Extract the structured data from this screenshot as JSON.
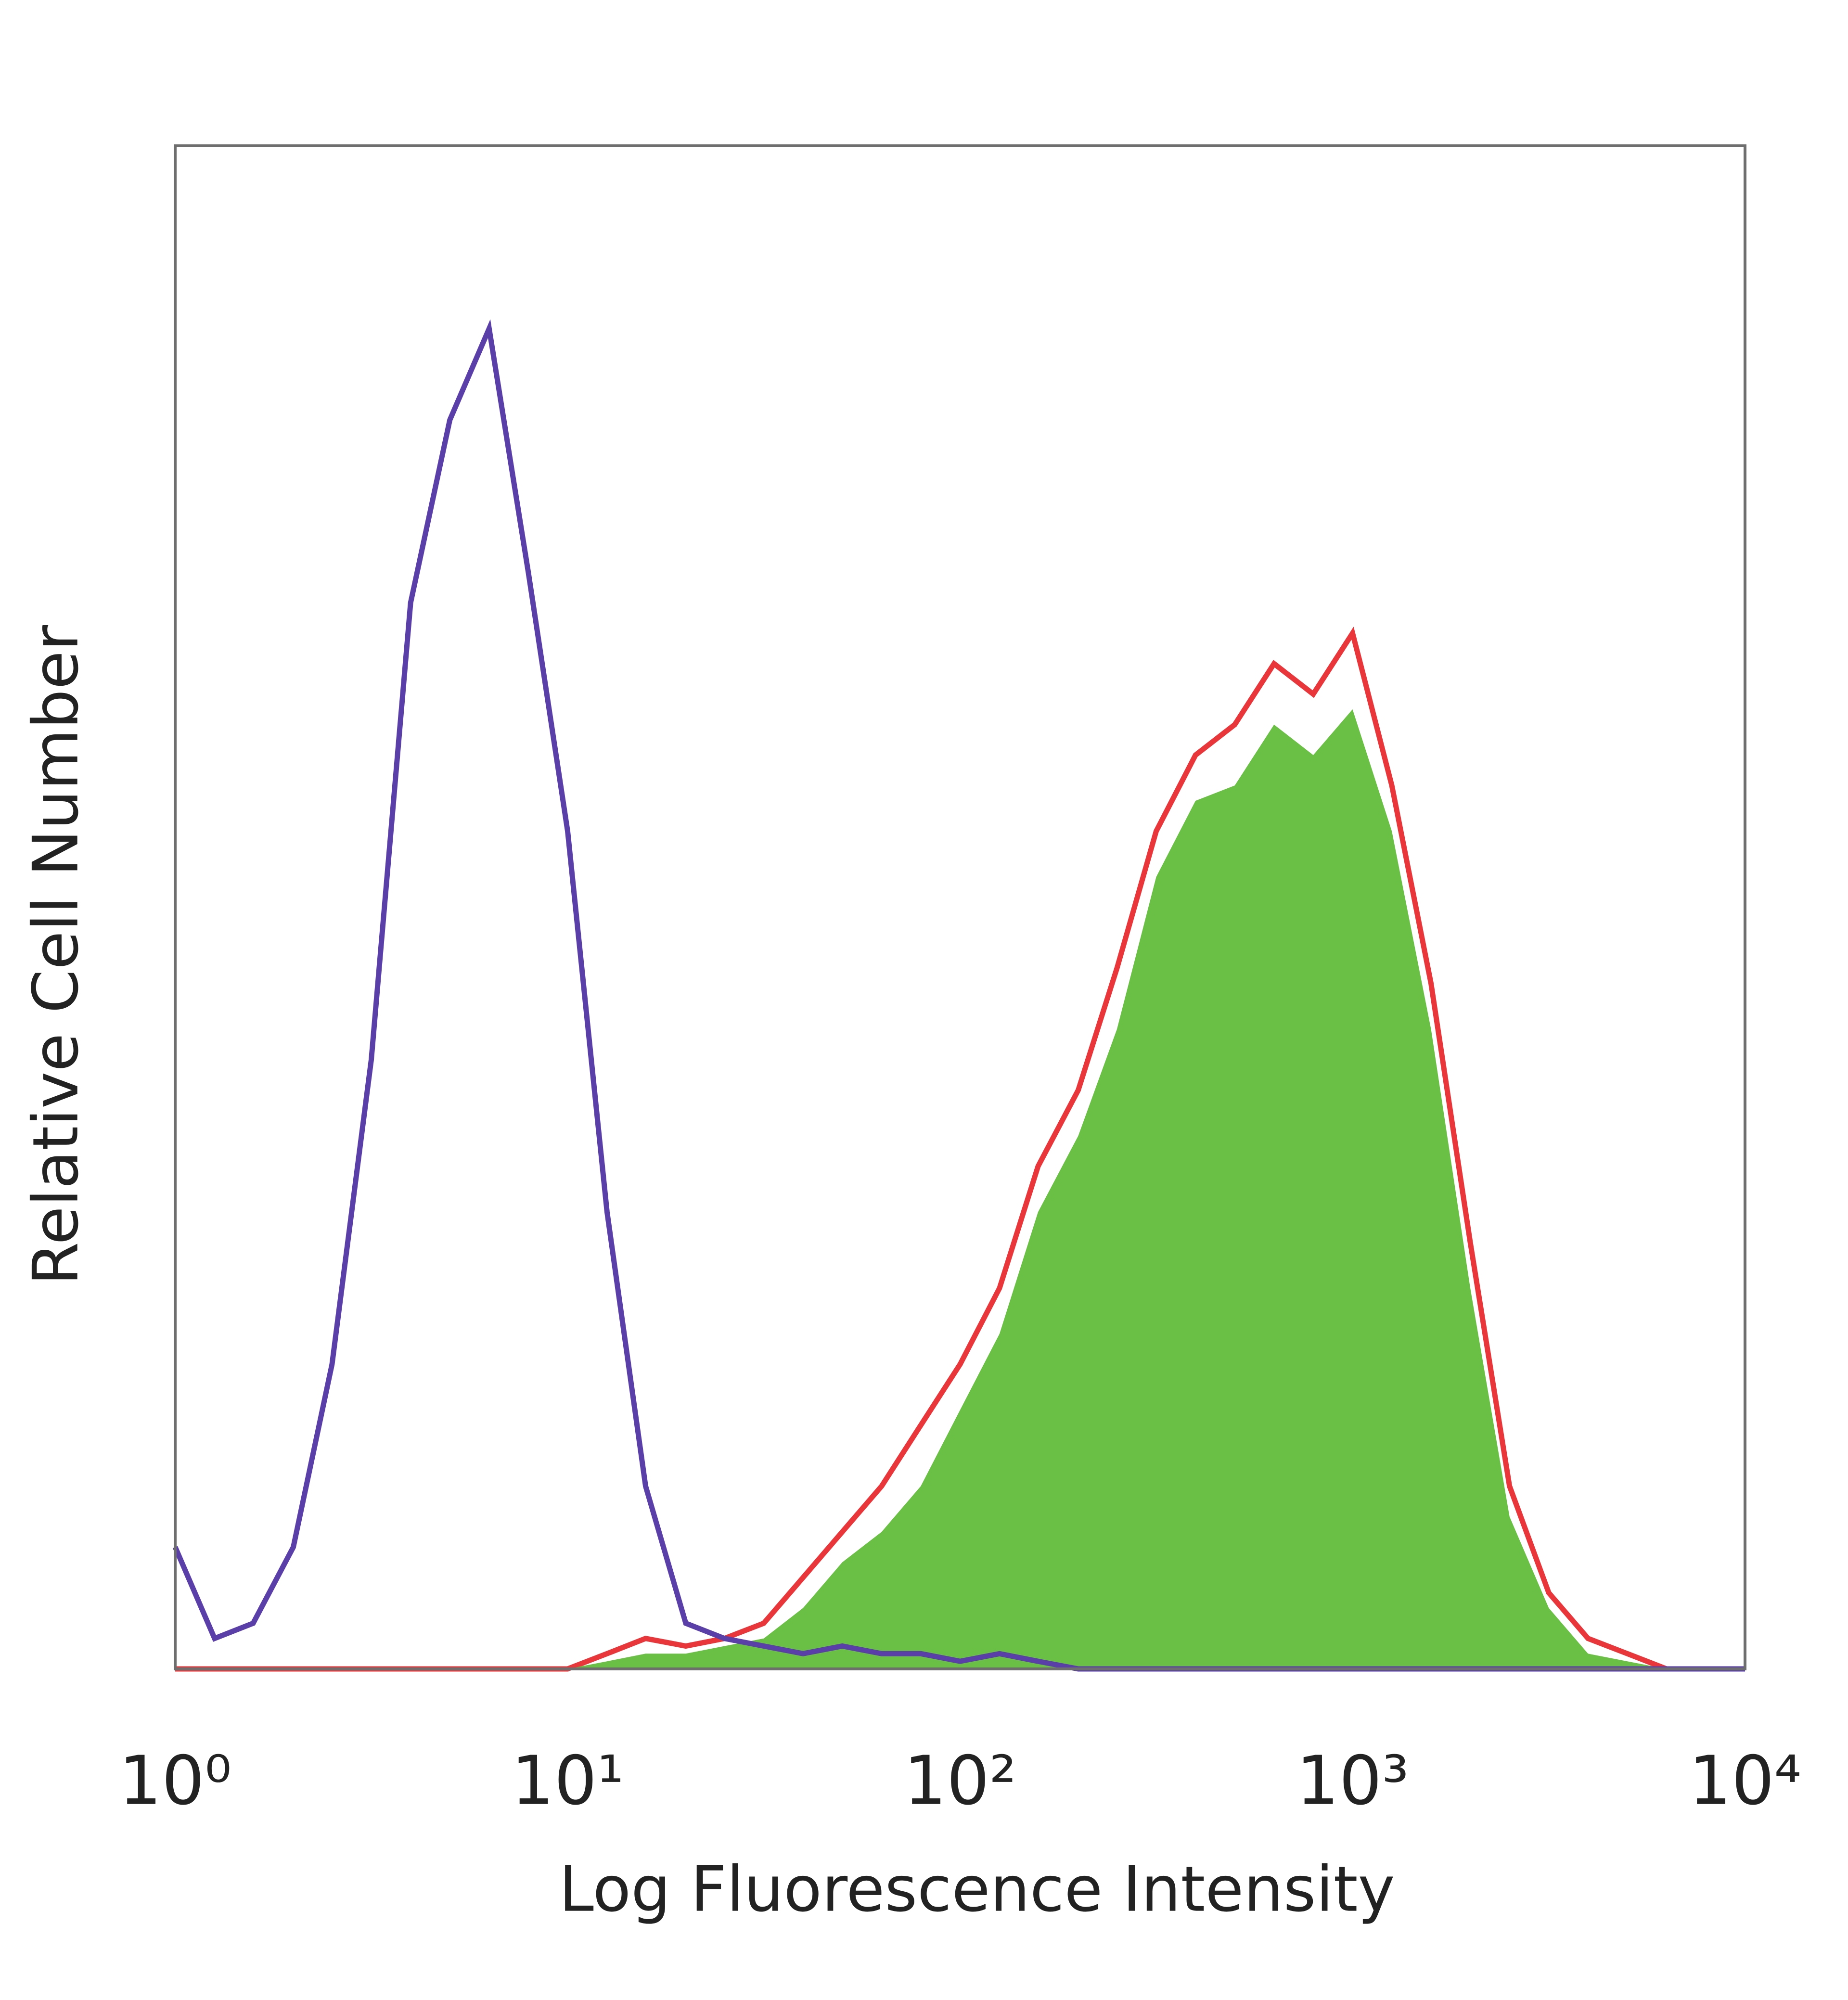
{
  "chart_data": {
    "type": "histogram-line",
    "xlabel": "Log Fluorescence Intensity",
    "ylabel": "Relative Cell Number",
    "xscale": "log",
    "xlim": [
      1,
      10000
    ],
    "xticks": [
      {
        "value": 1,
        "label": "10⁰"
      },
      {
        "value": 10,
        "label": "10¹"
      },
      {
        "value": 100,
        "label": "10²"
      },
      {
        "value": 1000,
        "label": "10³"
      },
      {
        "value": 10000,
        "label": "10⁴"
      }
    ],
    "ylim": [
      0,
      100
    ],
    "grid": false,
    "x": [
      1,
      1.26,
      1.58,
      2,
      2.51,
      3.16,
      3.98,
      5.01,
      6.31,
      7.94,
      10,
      12.6,
      15.8,
      20,
      25.1,
      31.6,
      39.8,
      50.1,
      63.1,
      79.4,
      100,
      126,
      158,
      200,
      251,
      316,
      398,
      501,
      631,
      794,
      1000,
      1259,
      1585,
      1995,
      2512,
      3162,
      3981,
      5012,
      6310,
      7943,
      10000
    ],
    "series": [
      {
        "color": "#e8363a",
        "fill": false,
        "values": [
          0,
          0,
          0,
          0,
          0,
          0,
          0,
          0,
          0,
          0,
          0,
          1,
          2,
          1.5,
          2,
          3,
          6,
          9,
          12,
          16,
          20,
          25,
          33,
          38,
          46,
          55,
          60,
          62,
          66,
          64,
          68,
          58,
          45,
          28,
          12,
          5,
          2,
          1,
          0,
          0,
          0
        ]
      },
      {
        "color": "#6abf45",
        "fill": true,
        "values": [
          0,
          0,
          0,
          0,
          0,
          0,
          0,
          0,
          0,
          0,
          0,
          0.5,
          1,
          1,
          1.5,
          2,
          4,
          7,
          9,
          12,
          17,
          22,
          30,
          35,
          42,
          52,
          57,
          58,
          62,
          60,
          63,
          55,
          42,
          25,
          10,
          4,
          1,
          0.5,
          0,
          0,
          0
        ]
      },
      {
        "color": "#5b3fa8",
        "fill": false,
        "values": [
          8,
          2,
          3,
          8,
          20,
          40,
          70,
          82,
          88,
          72,
          55,
          30,
          12,
          3,
          2,
          1.5,
          1,
          1.5,
          1,
          1,
          0.5,
          1,
          0.5,
          0,
          0,
          0,
          0,
          0,
          0,
          0,
          0,
          0,
          0,
          0,
          0,
          0,
          0,
          0,
          0,
          0,
          0
        ]
      }
    ]
  }
}
